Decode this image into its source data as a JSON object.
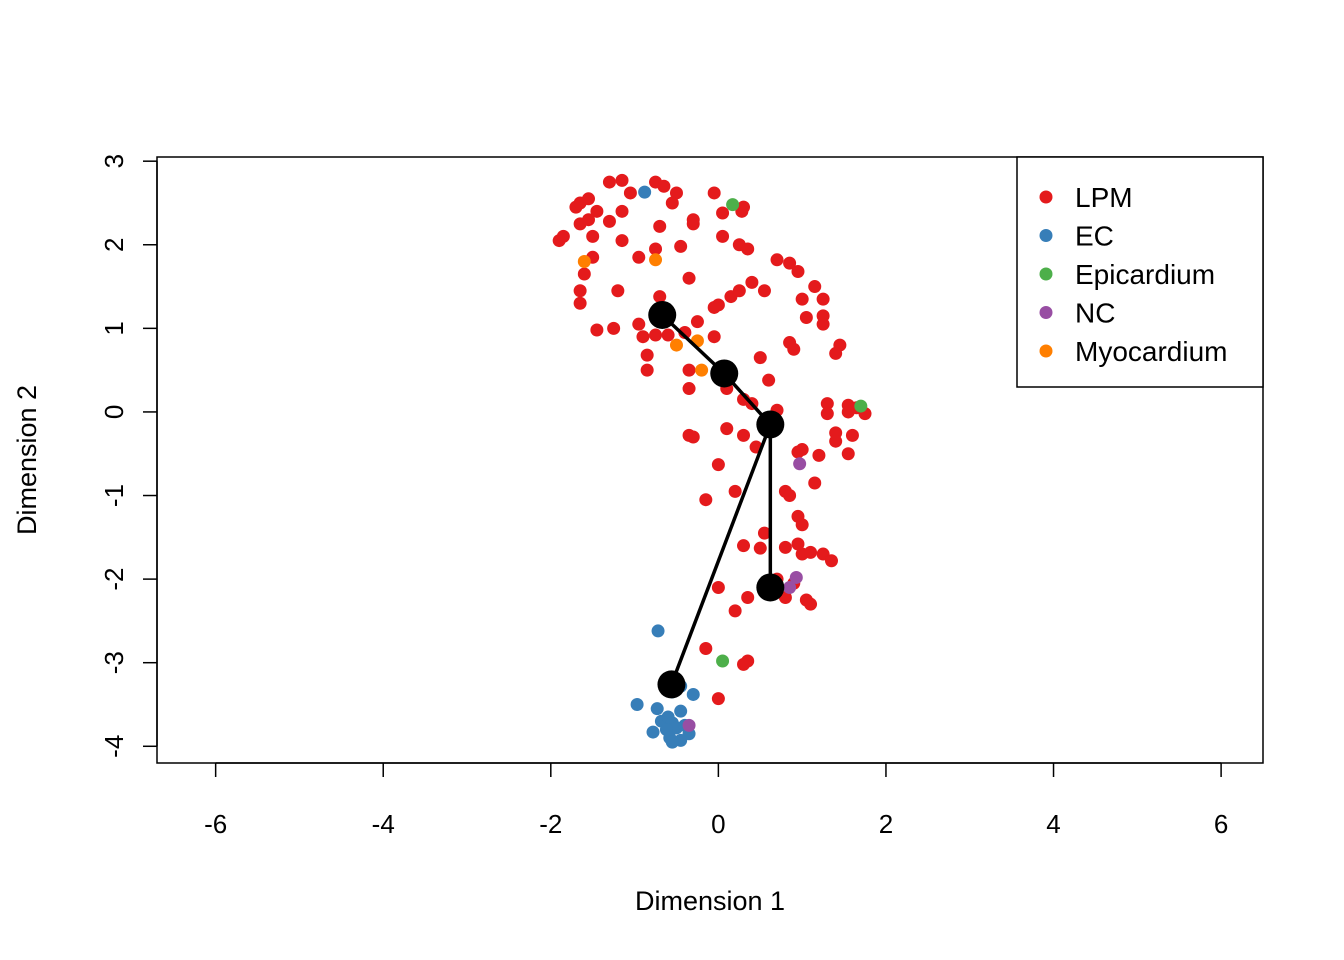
{
  "chart_data": {
    "type": "scatter",
    "title": "",
    "xlabel": "Dimension 1",
    "ylabel": "Dimension 2",
    "xlim": [
      -6.7,
      6.5
    ],
    "ylim": [
      -4.2,
      3.05
    ],
    "xticks": [
      -6,
      -4,
      -2,
      0,
      2,
      4,
      6
    ],
    "yticks": [
      -4,
      -3,
      -2,
      -1,
      0,
      1,
      2,
      3
    ],
    "grid": false,
    "legend_position": "top-right",
    "series": [
      {
        "name": "LPM",
        "color": "#E41A1C",
        "points": [
          [
            -1.9,
            2.05
          ],
          [
            -1.85,
            2.1
          ],
          [
            -1.7,
            2.45
          ],
          [
            -1.65,
            2.5
          ],
          [
            -1.55,
            2.55
          ],
          [
            -1.45,
            2.4
          ],
          [
            -1.3,
            2.75
          ],
          [
            -1.15,
            2.77
          ],
          [
            -1.05,
            2.62
          ],
          [
            -0.75,
            2.75
          ],
          [
            -0.65,
            2.7
          ],
          [
            -0.5,
            2.62
          ],
          [
            -0.55,
            2.5
          ],
          [
            -0.05,
            2.62
          ],
          [
            0.05,
            2.38
          ],
          [
            0.3,
            2.45
          ],
          [
            0.28,
            2.4
          ],
          [
            -1.65,
            2.25
          ],
          [
            -1.55,
            2.3
          ],
          [
            -1.5,
            2.1
          ],
          [
            -1.3,
            2.28
          ],
          [
            -1.15,
            2.4
          ],
          [
            -1.15,
            2.05
          ],
          [
            -0.7,
            2.22
          ],
          [
            -0.3,
            2.25
          ],
          [
            -0.3,
            2.3
          ],
          [
            0.05,
            2.1
          ],
          [
            0.25,
            2.0
          ],
          [
            0.35,
            1.95
          ],
          [
            -1.5,
            1.85
          ],
          [
            -1.6,
            1.65
          ],
          [
            -1.65,
            1.45
          ],
          [
            -1.65,
            1.3
          ],
          [
            -1.2,
            1.45
          ],
          [
            -0.95,
            1.85
          ],
          [
            -0.75,
            1.95
          ],
          [
            -0.45,
            1.98
          ],
          [
            -0.35,
            1.6
          ],
          [
            -0.7,
            1.38
          ],
          [
            0.0,
            1.28
          ],
          [
            -0.05,
            1.25
          ],
          [
            0.15,
            1.38
          ],
          [
            0.25,
            1.45
          ],
          [
            0.4,
            1.55
          ],
          [
            0.55,
            1.45
          ],
          [
            0.7,
            1.82
          ],
          [
            0.85,
            1.78
          ],
          [
            0.95,
            1.68
          ],
          [
            1.15,
            1.5
          ],
          [
            1.0,
            1.35
          ],
          [
            1.25,
            1.35
          ],
          [
            1.05,
            1.13
          ],
          [
            1.25,
            1.15
          ],
          [
            1.25,
            1.05
          ],
          [
            0.85,
            0.83
          ],
          [
            0.9,
            0.75
          ],
          [
            1.45,
            0.8
          ],
          [
            1.4,
            0.7
          ],
          [
            -1.45,
            0.98
          ],
          [
            -1.25,
            1.0
          ],
          [
            -0.95,
            1.05
          ],
          [
            -0.9,
            0.9
          ],
          [
            -0.75,
            0.92
          ],
          [
            -0.6,
            0.92
          ],
          [
            -0.4,
            0.95
          ],
          [
            -0.25,
            1.08
          ],
          [
            -0.05,
            0.9
          ],
          [
            -0.85,
            0.68
          ],
          [
            -0.85,
            0.5
          ],
          [
            -0.35,
            0.5
          ],
          [
            -0.35,
            0.28
          ],
          [
            0.1,
            0.28
          ],
          [
            0.5,
            0.65
          ],
          [
            0.6,
            0.38
          ],
          [
            0.3,
            0.15
          ],
          [
            0.4,
            0.1
          ],
          [
            0.7,
            0.02
          ],
          [
            1.3,
            0.1
          ],
          [
            1.3,
            -0.02
          ],
          [
            1.55,
            0.08
          ],
          [
            1.55,
            0.0
          ],
          [
            1.65,
            0.05
          ],
          [
            1.75,
            -0.02
          ],
          [
            1.4,
            -0.25
          ],
          [
            1.4,
            -0.35
          ],
          [
            1.6,
            -0.28
          ],
          [
            1.55,
            -0.5
          ],
          [
            -0.35,
            -0.28
          ],
          [
            -0.3,
            -0.3
          ],
          [
            0.1,
            -0.2
          ],
          [
            0.3,
            -0.28
          ],
          [
            0.45,
            -0.42
          ],
          [
            0.95,
            -0.48
          ],
          [
            1.0,
            -0.45
          ],
          [
            1.2,
            -0.52
          ],
          [
            0.0,
            -0.63
          ],
          [
            1.15,
            -0.85
          ],
          [
            0.8,
            -0.95
          ],
          [
            0.85,
            -1.0
          ],
          [
            0.2,
            -0.95
          ],
          [
            -0.15,
            -1.05
          ],
          [
            0.95,
            -1.25
          ],
          [
            1.0,
            -1.35
          ],
          [
            0.55,
            -1.45
          ],
          [
            0.3,
            -1.6
          ],
          [
            0.5,
            -1.63
          ],
          [
            0.8,
            -1.62
          ],
          [
            0.95,
            -1.58
          ],
          [
            1.0,
            -1.7
          ],
          [
            1.1,
            -1.68
          ],
          [
            1.25,
            -1.7
          ],
          [
            1.35,
            -1.78
          ],
          [
            0.7,
            -2.0
          ],
          [
            0.9,
            -2.05
          ],
          [
            1.05,
            -2.25
          ],
          [
            1.1,
            -2.3
          ],
          [
            0.8,
            -2.22
          ],
          [
            0.0,
            -2.1
          ],
          [
            0.35,
            -2.22
          ],
          [
            0.2,
            -2.38
          ],
          [
            -0.15,
            -2.83
          ],
          [
            0.35,
            -2.98
          ],
          [
            0.3,
            -3.02
          ],
          [
            0.0,
            -3.43
          ]
        ]
      },
      {
        "name": "EC",
        "color": "#377EB8",
        "points": [
          [
            -0.88,
            2.63
          ],
          [
            -0.72,
            -2.62
          ],
          [
            -0.45,
            -3.28
          ],
          [
            -0.3,
            -3.38
          ],
          [
            -0.55,
            -3.35
          ],
          [
            -0.97,
            -3.5
          ],
          [
            -0.73,
            -3.55
          ],
          [
            -0.45,
            -3.58
          ],
          [
            -0.68,
            -3.7
          ],
          [
            -0.6,
            -3.65
          ],
          [
            -0.55,
            -3.72
          ],
          [
            -0.5,
            -3.78
          ],
          [
            -0.4,
            -3.75
          ],
          [
            -0.62,
            -3.8
          ],
          [
            -0.78,
            -3.83
          ],
          [
            -0.35,
            -3.85
          ],
          [
            -0.58,
            -3.9
          ],
          [
            -0.45,
            -3.93
          ],
          [
            -0.55,
            -3.95
          ]
        ]
      },
      {
        "name": "Epicardium",
        "color": "#4DAF4A",
        "points": [
          [
            0.17,
            2.48
          ],
          [
            1.7,
            0.07
          ],
          [
            0.05,
            -2.98
          ]
        ]
      },
      {
        "name": "NC",
        "color": "#984EA3",
        "points": [
          [
            0.97,
            -0.62
          ],
          [
            0.93,
            -1.98
          ],
          [
            0.85,
            -2.1
          ],
          [
            -0.35,
            -3.75
          ]
        ]
      },
      {
        "name": "Myocardium",
        "color": "#FF7F00",
        "points": [
          [
            -1.6,
            1.8
          ],
          [
            -0.75,
            1.82
          ],
          [
            -0.25,
            0.85
          ],
          [
            -0.5,
            0.8
          ],
          [
            -0.2,
            0.5
          ]
        ]
      }
    ],
    "trajectory": {
      "color": "#000000",
      "nodes": [
        [
          -0.67,
          1.16
        ],
        [
          0.07,
          0.46
        ],
        [
          0.62,
          -0.15
        ],
        [
          0.62,
          -2.1
        ],
        [
          -0.56,
          -3.26
        ]
      ],
      "edges": [
        [
          0,
          1
        ],
        [
          1,
          2
        ],
        [
          2,
          3
        ],
        [
          2,
          4
        ]
      ]
    }
  }
}
